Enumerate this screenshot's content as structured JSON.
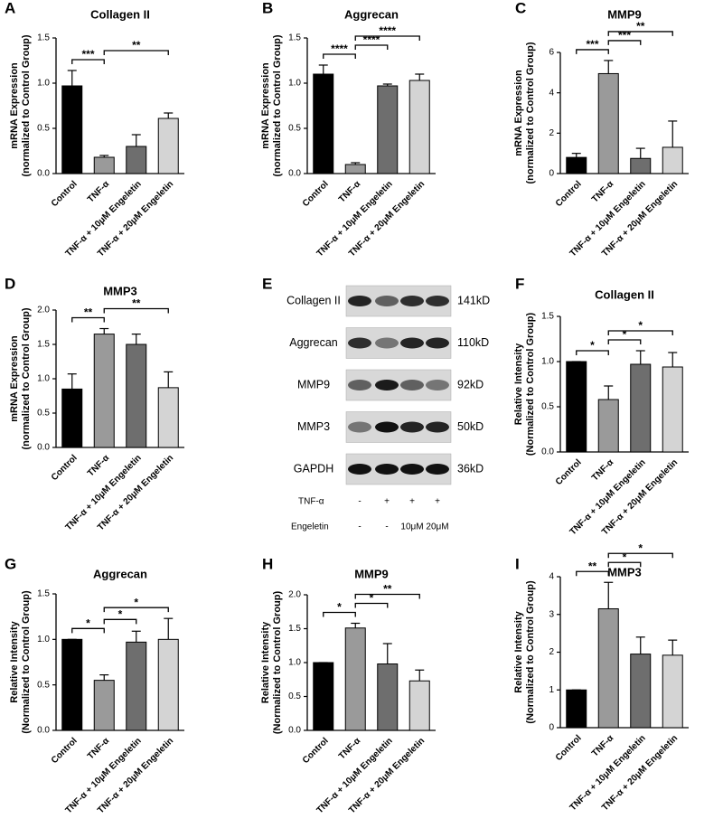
{
  "chart_data": [
    {
      "type": "bar",
      "panel_label": "A",
      "title": "Collagen II",
      "ylabel": [
        "mRNA Expression",
        "(normalized to Control Group)"
      ],
      "categories": [
        "Control",
        "TNF-α",
        "TNF-α + 10μM Engeletin",
        "TNF-α + 20μM Engeletin"
      ],
      "values": [
        0.97,
        0.18,
        0.3,
        0.61
      ],
      "errors": [
        0.17,
        0.02,
        0.13,
        0.06
      ],
      "colors": [
        "#000000",
        "#9a9a9a",
        "#6e6e6e",
        "#d4d4d4"
      ],
      "ylim": [
        0,
        1.5
      ],
      "yticks": [
        {
          "value": 0,
          "label": "0.0"
        },
        0.5,
        {
          "value": 1,
          "label": "1.0"
        },
        1.5
      ],
      "brackets": [
        {
          "label": "***",
          "between": [
            0,
            1
          ]
        },
        {
          "label": "**",
          "between": [
            1,
            3
          ]
        }
      ]
    },
    {
      "type": "bar",
      "panel_label": "B",
      "title": "Aggrecan",
      "ylabel": [
        "mRNA Expression",
        "(normalized to Control Group)"
      ],
      "categories": [
        "Control",
        "TNF-α",
        "TNF-α + 10μM Engeletin",
        "TNF-α + 20μM Engeletin"
      ],
      "values": [
        1.1,
        0.1,
        0.97,
        1.03
      ],
      "errors": [
        0.1,
        0.02,
        0.02,
        0.07
      ],
      "colors": [
        "#000000",
        "#9a9a9a",
        "#6e6e6e",
        "#d4d4d4"
      ],
      "ylim": [
        0,
        1.5
      ],
      "yticks": [
        {
          "value": 0,
          "label": "0.0"
        },
        0.5,
        {
          "value": 1,
          "label": "1.0"
        },
        1.5
      ],
      "brackets": [
        {
          "label": "****",
          "between": [
            0,
            1
          ]
        },
        {
          "label": "****",
          "between": [
            1,
            2
          ]
        },
        {
          "label": "****",
          "between": [
            1,
            3
          ]
        }
      ]
    },
    {
      "type": "bar",
      "panel_label": "C",
      "title": "MMP9",
      "ylabel": [
        "mRNA Expression",
        "(normalized to Control Group)"
      ],
      "categories": [
        "Control",
        "TNF-α",
        "TNF-α + 10μM Engeletin",
        "TNF-α + 20μM Engeletin"
      ],
      "values": [
        0.8,
        4.95,
        0.75,
        1.3
      ],
      "errors": [
        0.2,
        0.65,
        0.5,
        1.3
      ],
      "colors": [
        "#000000",
        "#9a9a9a",
        "#6e6e6e",
        "#d4d4d4"
      ],
      "ylim": [
        0,
        6
      ],
      "yticks": [
        0,
        2,
        4,
        6
      ],
      "brackets": [
        {
          "label": "***",
          "between": [
            0,
            1
          ]
        },
        {
          "label": "***",
          "between": [
            1,
            2
          ]
        },
        {
          "label": "**",
          "between": [
            1,
            3
          ]
        }
      ]
    },
    {
      "type": "bar",
      "panel_label": "D",
      "title": "MMP3",
      "ylabel": [
        "mRNA Expression",
        "(normalized to Control Group)"
      ],
      "categories": [
        "Control",
        "TNF-α",
        "TNF-α + 10μM Engeletin",
        "TNF-α + 20μM Engeletin"
      ],
      "values": [
        0.85,
        1.65,
        1.5,
        0.87
      ],
      "errors": [
        0.22,
        0.08,
        0.15,
        0.23
      ],
      "colors": [
        "#000000",
        "#9a9a9a",
        "#6e6e6e",
        "#d4d4d4"
      ],
      "ylim": [
        0,
        2
      ],
      "yticks": [
        {
          "value": 0,
          "label": "0.0"
        },
        0.5,
        {
          "value": 1,
          "label": "1.0"
        },
        1.5,
        {
          "value": 2,
          "label": "2.0"
        }
      ],
      "brackets": [
        {
          "label": "**",
          "between": [
            0,
            1
          ]
        },
        {
          "label": "**",
          "between": [
            1,
            3
          ]
        }
      ]
    },
    {
      "type": "bar",
      "panel_label": "F",
      "title": "Collagen II",
      "ylabel": [
        "Relative Intensity",
        "(Normalized to Control Group)"
      ],
      "categories": [
        "Control",
        "TNF-α",
        "TNF-α + 10μM Engeletin",
        "TNF-α + 20μM Engeletin"
      ],
      "values": [
        1.0,
        0.58,
        0.97,
        0.94
      ],
      "errors": [
        0,
        0.15,
        0.15,
        0.16
      ],
      "colors": [
        "#000000",
        "#9a9a9a",
        "#6e6e6e",
        "#d4d4d4"
      ],
      "ylim": [
        0,
        1.5
      ],
      "yticks": [
        {
          "value": 0,
          "label": "0.0"
        },
        0.5,
        {
          "value": 1,
          "label": "1.0"
        },
        1.5
      ],
      "brackets": [
        {
          "label": "*",
          "between": [
            0,
            1
          ]
        },
        {
          "label": "*",
          "between": [
            1,
            2
          ]
        },
        {
          "label": "*",
          "between": [
            1,
            3
          ]
        }
      ]
    },
    {
      "type": "bar",
      "panel_label": "G",
      "title": "Aggrecan",
      "ylabel": [
        "Relative Intensity",
        "(Normalized to Control Group)"
      ],
      "categories": [
        "Control",
        "TNF-α",
        "TNF-α + 10μM Engeletin",
        "TNF-α + 20μM Engeletin"
      ],
      "values": [
        1.0,
        0.55,
        0.97,
        1.0
      ],
      "errors": [
        0,
        0.06,
        0.12,
        0.23
      ],
      "colors": [
        "#000000",
        "#9a9a9a",
        "#6e6e6e",
        "#d4d4d4"
      ],
      "ylim": [
        0,
        1.5
      ],
      "yticks": [
        {
          "value": 0,
          "label": "0.0"
        },
        0.5,
        {
          "value": 1,
          "label": "1.0"
        },
        1.5
      ],
      "brackets": [
        {
          "label": "*",
          "between": [
            0,
            1
          ]
        },
        {
          "label": "*",
          "between": [
            1,
            2
          ]
        },
        {
          "label": "*",
          "between": [
            1,
            3
          ]
        }
      ]
    },
    {
      "type": "bar",
      "panel_label": "H",
      "title": "MMP9",
      "ylabel": [
        "Relative Intensity",
        "(Normalized to Control Group)"
      ],
      "categories": [
        "Control",
        "TNF-α",
        "TNF-α + 10μM Engeletin",
        "TNF-α + 20μM Engeletin"
      ],
      "values": [
        1.0,
        1.51,
        0.98,
        0.73
      ],
      "errors": [
        0,
        0.07,
        0.3,
        0.16
      ],
      "colors": [
        "#000000",
        "#9a9a9a",
        "#6e6e6e",
        "#d4d4d4"
      ],
      "ylim": [
        0,
        2
      ],
      "yticks": [
        {
          "value": 0,
          "label": "0.0"
        },
        0.5,
        {
          "value": 1,
          "label": "1.0"
        },
        1.5,
        {
          "value": 2,
          "label": "2.0"
        }
      ],
      "brackets": [
        {
          "label": "*",
          "between": [
            0,
            1
          ]
        },
        {
          "label": "*",
          "between": [
            1,
            2
          ]
        },
        {
          "label": "**",
          "between": [
            1,
            3
          ]
        }
      ]
    },
    {
      "type": "bar",
      "panel_label": "I",
      "title": "MMP3",
      "ylabel": [
        "Relative Intensity",
        "(Normalized to Control Group)"
      ],
      "categories": [
        "Control",
        "TNF-α",
        "TNF-α + 10μM Engeletin",
        "TNF-α + 20μM Engeletin"
      ],
      "values": [
        1.0,
        3.15,
        1.95,
        1.92
      ],
      "errors": [
        0,
        0.7,
        0.45,
        0.4
      ],
      "colors": [
        "#000000",
        "#9a9a9a",
        "#6e6e6e",
        "#d4d4d4"
      ],
      "ylim": [
        0,
        4
      ],
      "yticks": [
        0,
        1,
        2,
        3,
        4
      ],
      "brackets": [
        {
          "label": "**",
          "between": [
            0,
            1
          ]
        },
        {
          "label": "*",
          "between": [
            1,
            2
          ]
        },
        {
          "label": "*",
          "between": [
            1,
            3
          ]
        }
      ]
    }
  ],
  "blot": {
    "panel_label": "E",
    "rows": [
      {
        "protein": "Collagen II",
        "size": "141kD"
      },
      {
        "protein": "Aggrecan",
        "size": "110kD"
      },
      {
        "protein": "MMP9",
        "size": "92kD"
      },
      {
        "protein": "MMP3",
        "size": "50kD"
      },
      {
        "protein": "GAPDH",
        "size": "36kD"
      }
    ],
    "treatments": [
      {
        "name": "TNF-α",
        "lanes": [
          "-",
          "+",
          "+",
          "+"
        ]
      },
      {
        "name": "Engeletin",
        "lanes": [
          "-",
          "-",
          "10μM",
          "20μM"
        ]
      }
    ]
  }
}
